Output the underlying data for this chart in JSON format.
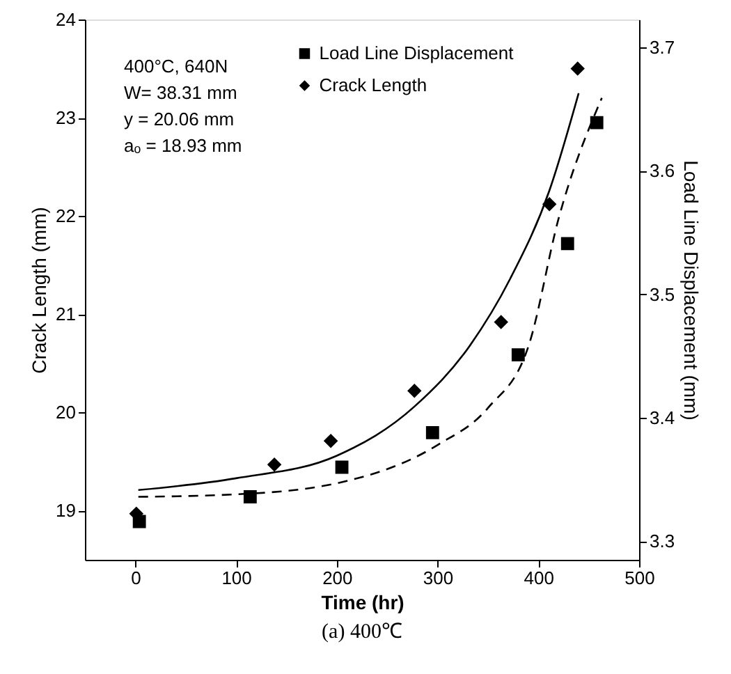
{
  "chart_data": {
    "type": "scatter",
    "title": "(a) 400℃",
    "xlabel": "Time (hr)",
    "ylabel": "Crack Length (mm)",
    "y2label": "Load Line Displacement (mm)",
    "annotations": [
      "400°C, 640N",
      "W= 38.31 mm",
      "y = 20.06 mm",
      "aₒ = 18.93 mm"
    ],
    "xlim": [
      -50,
      500
    ],
    "xticks": [
      0,
      100,
      200,
      300,
      400,
      500
    ],
    "ylim": [
      18.5,
      24
    ],
    "yticks": [
      19,
      20,
      21,
      22,
      23,
      24
    ],
    "y2lim": [
      3.285,
      3.7225
    ],
    "y2ticks": [
      3.3,
      3.4,
      3.5,
      3.6,
      3.7
    ],
    "grid": false,
    "legend": "top",
    "series": [
      {
        "name": "Load Line Displacement",
        "axis": "y2",
        "marker": "square",
        "color": "#000000",
        "x": [
          4,
          114,
          205,
          295,
          380,
          429,
          458
        ],
        "values": [
          3.316,
          3.336,
          3.36,
          3.388,
          3.451,
          3.541,
          3.639
        ]
      },
      {
        "name": "Crack Length",
        "marker": "diamond",
        "color": "#000000",
        "x": [
          1,
          138,
          194,
          277,
          363,
          411,
          439
        ],
        "values": [
          18.97,
          19.47,
          19.71,
          20.22,
          20.92,
          22.12,
          23.5
        ]
      },
      {
        "type": "line",
        "line_style": "solid",
        "marker": "none",
        "color": "#000000",
        "x": [
          3,
          100,
          200,
          277,
          332,
          372,
          411,
          440
        ],
        "values": [
          19.21,
          19.33,
          19.56,
          20.06,
          20.68,
          21.36,
          22.26,
          23.25
        ]
      },
      {
        "type": "line",
        "axis": "y2",
        "line_style": "dashed",
        "marker": "none",
        "color": "#000000",
        "x": [
          3,
          100,
          200,
          300,
          350,
          391,
          420,
          463
        ],
        "values": [
          3.336,
          3.338,
          3.347,
          3.378,
          3.408,
          3.46,
          3.561,
          3.659
        ]
      }
    ]
  }
}
